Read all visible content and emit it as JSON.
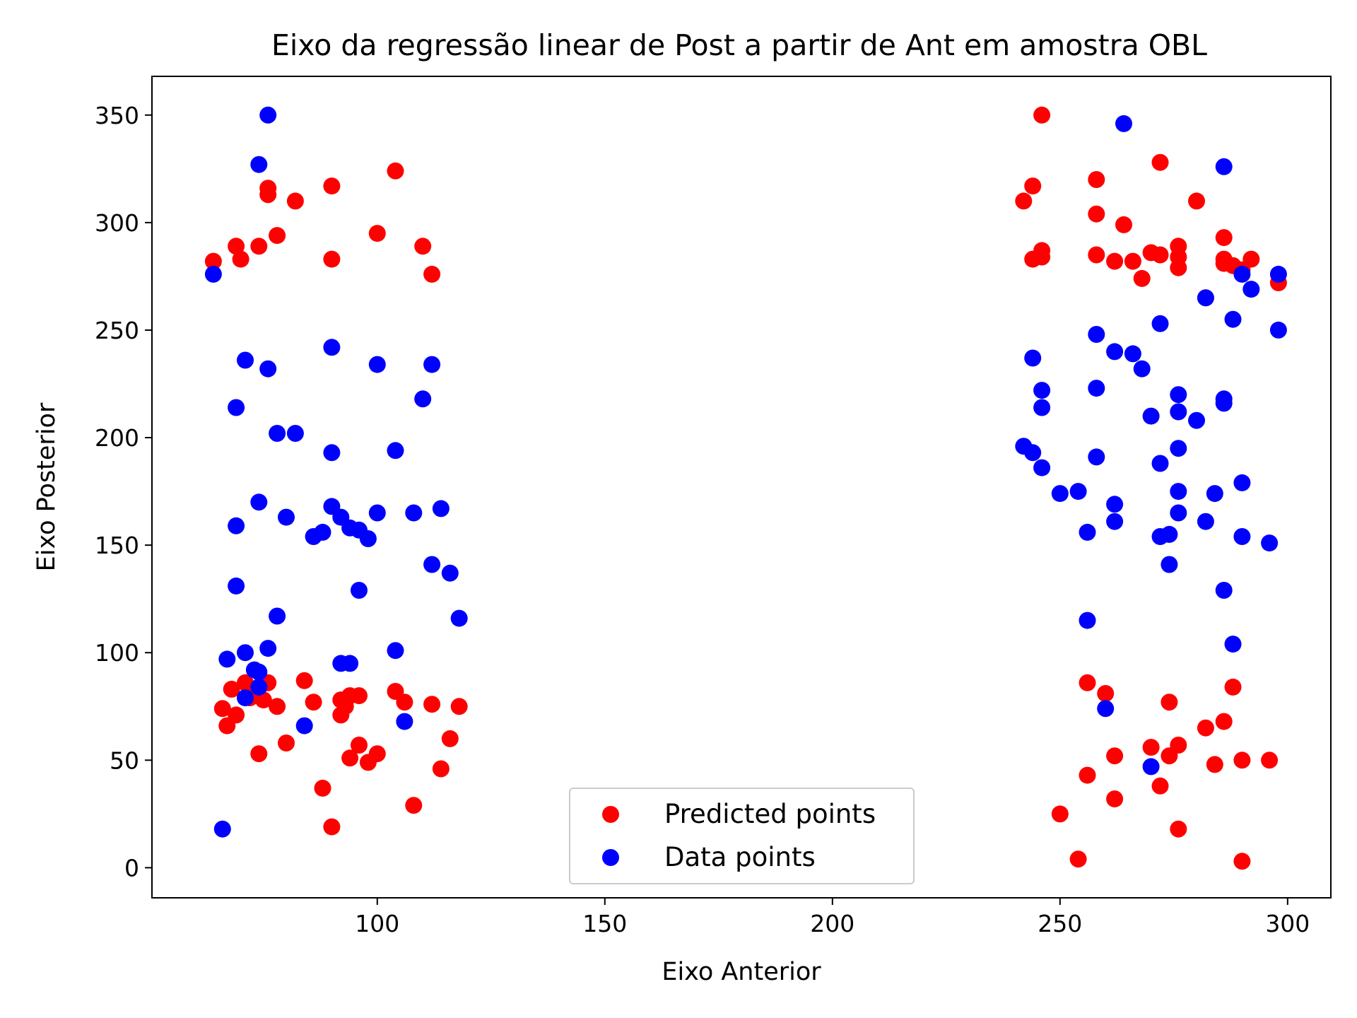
{
  "chart_data": {
    "type": "scatter",
    "title": "Eixo da regressão linear de Post a partir de Ant em amostra OBL",
    "xlabel": "Eixo Anterior",
    "ylabel": "Eixo Posterior",
    "xlim": [
      50.5,
      309.5
    ],
    "ylim": [
      -14,
      368
    ],
    "xticks": [
      100,
      150,
      200,
      250,
      300
    ],
    "yticks": [
      0,
      50,
      100,
      150,
      200,
      250,
      300,
      350
    ],
    "grid": false,
    "legend": {
      "placement": "lower center"
    },
    "series": [
      {
        "name": "Predicted points",
        "color": "#ff0000",
        "points": [
          [
            64,
            282
          ],
          [
            66,
            74
          ],
          [
            67,
            66
          ],
          [
            68,
            83
          ],
          [
            69,
            71
          ],
          [
            69,
            289
          ],
          [
            70,
            283
          ],
          [
            71,
            86
          ],
          [
            72,
            79
          ],
          [
            73,
            80
          ],
          [
            74,
            53
          ],
          [
            74,
            289
          ],
          [
            75,
            78
          ],
          [
            76,
            316
          ],
          [
            76,
            313
          ],
          [
            76,
            86
          ],
          [
            78,
            294
          ],
          [
            78,
            75
          ],
          [
            80,
            58
          ],
          [
            82,
            310
          ],
          [
            84,
            87
          ],
          [
            86,
            77
          ],
          [
            88,
            37
          ],
          [
            90,
            317
          ],
          [
            90,
            283
          ],
          [
            90,
            19
          ],
          [
            92,
            78
          ],
          [
            92,
            71
          ],
          [
            93,
            75
          ],
          [
            94,
            80
          ],
          [
            94,
            51
          ],
          [
            96,
            80
          ],
          [
            96,
            57
          ],
          [
            98,
            49
          ],
          [
            100,
            295
          ],
          [
            100,
            53
          ],
          [
            104,
            324
          ],
          [
            104,
            82
          ],
          [
            106,
            77
          ],
          [
            108,
            29
          ],
          [
            110,
            289
          ],
          [
            112,
            276
          ],
          [
            112,
            76
          ],
          [
            114,
            46
          ],
          [
            116,
            60
          ],
          [
            118,
            75
          ],
          [
            242,
            310
          ],
          [
            244,
            317
          ],
          [
            244,
            283
          ],
          [
            246,
            350
          ],
          [
            246,
            287
          ],
          [
            246,
            284
          ],
          [
            250,
            25
          ],
          [
            254,
            4
          ],
          [
            256,
            43
          ],
          [
            256,
            86
          ],
          [
            258,
            320
          ],
          [
            258,
            304
          ],
          [
            258,
            285
          ],
          [
            260,
            81
          ],
          [
            262,
            282
          ],
          [
            262,
            52
          ],
          [
            262,
            32
          ],
          [
            264,
            299
          ],
          [
            266,
            282
          ],
          [
            268,
            274
          ],
          [
            270,
            286
          ],
          [
            270,
            56
          ],
          [
            272,
            328
          ],
          [
            272,
            285
          ],
          [
            272,
            38
          ],
          [
            274,
            77
          ],
          [
            274,
            52
          ],
          [
            276,
            289
          ],
          [
            276,
            284
          ],
          [
            276,
            279
          ],
          [
            276,
            57
          ],
          [
            276,
            18
          ],
          [
            280,
            310
          ],
          [
            282,
            265
          ],
          [
            282,
            65
          ],
          [
            284,
            48
          ],
          [
            286,
            293
          ],
          [
            286,
            283
          ],
          [
            286,
            281
          ],
          [
            286,
            68
          ],
          [
            288,
            280
          ],
          [
            288,
            84
          ],
          [
            290,
            278
          ],
          [
            290,
            50
          ],
          [
            290,
            3
          ],
          [
            292,
            283
          ],
          [
            296,
            50
          ],
          [
            298,
            272
          ]
        ]
      },
      {
        "name": "Data points",
        "color": "#0000ff",
        "points": [
          [
            64,
            276
          ],
          [
            66,
            18
          ],
          [
            67,
            97
          ],
          [
            69,
            214
          ],
          [
            69,
            159
          ],
          [
            69,
            131
          ],
          [
            71,
            236
          ],
          [
            71,
            100
          ],
          [
            71,
            79
          ],
          [
            73,
            92
          ],
          [
            74,
            170
          ],
          [
            74,
            327
          ],
          [
            74,
            91
          ],
          [
            74,
            84
          ],
          [
            76,
            350
          ],
          [
            76,
            232
          ],
          [
            76,
            102
          ],
          [
            78,
            202
          ],
          [
            78,
            117
          ],
          [
            80,
            163
          ],
          [
            82,
            202
          ],
          [
            84,
            66
          ],
          [
            86,
            154
          ],
          [
            88,
            156
          ],
          [
            90,
            242
          ],
          [
            90,
            193
          ],
          [
            90,
            168
          ],
          [
            92,
            163
          ],
          [
            92,
            95
          ],
          [
            94,
            158
          ],
          [
            94,
            95
          ],
          [
            96,
            157
          ],
          [
            96,
            129
          ],
          [
            98,
            153
          ],
          [
            100,
            234
          ],
          [
            100,
            165
          ],
          [
            104,
            194
          ],
          [
            104,
            101
          ],
          [
            106,
            68
          ],
          [
            108,
            165
          ],
          [
            110,
            218
          ],
          [
            112,
            234
          ],
          [
            112,
            141
          ],
          [
            114,
            167
          ],
          [
            116,
            137
          ],
          [
            118,
            116
          ],
          [
            242,
            196
          ],
          [
            244,
            193
          ],
          [
            244,
            237
          ],
          [
            246,
            222
          ],
          [
            246,
            214
          ],
          [
            246,
            186
          ],
          [
            250,
            174
          ],
          [
            254,
            175
          ],
          [
            256,
            115
          ],
          [
            256,
            156
          ],
          [
            258,
            248
          ],
          [
            258,
            223
          ],
          [
            258,
            191
          ],
          [
            260,
            74
          ],
          [
            262,
            240
          ],
          [
            262,
            169
          ],
          [
            262,
            161
          ],
          [
            264,
            346
          ],
          [
            266,
            239
          ],
          [
            268,
            232
          ],
          [
            270,
            210
          ],
          [
            270,
            47
          ],
          [
            272,
            188
          ],
          [
            272,
            154
          ],
          [
            272,
            253
          ],
          [
            274,
            155
          ],
          [
            274,
            141
          ],
          [
            276,
            220
          ],
          [
            276,
            212
          ],
          [
            276,
            195
          ],
          [
            276,
            175
          ],
          [
            276,
            165
          ],
          [
            280,
            208
          ],
          [
            282,
            265
          ],
          [
            282,
            161
          ],
          [
            284,
            174
          ],
          [
            286,
            326
          ],
          [
            286,
            218
          ],
          [
            286,
            216
          ],
          [
            286,
            129
          ],
          [
            288,
            255
          ],
          [
            288,
            104
          ],
          [
            290,
            276
          ],
          [
            290,
            179
          ],
          [
            290,
            154
          ],
          [
            292,
            269
          ],
          [
            296,
            151
          ],
          [
            298,
            276
          ],
          [
            298,
            250
          ]
        ]
      }
    ]
  }
}
